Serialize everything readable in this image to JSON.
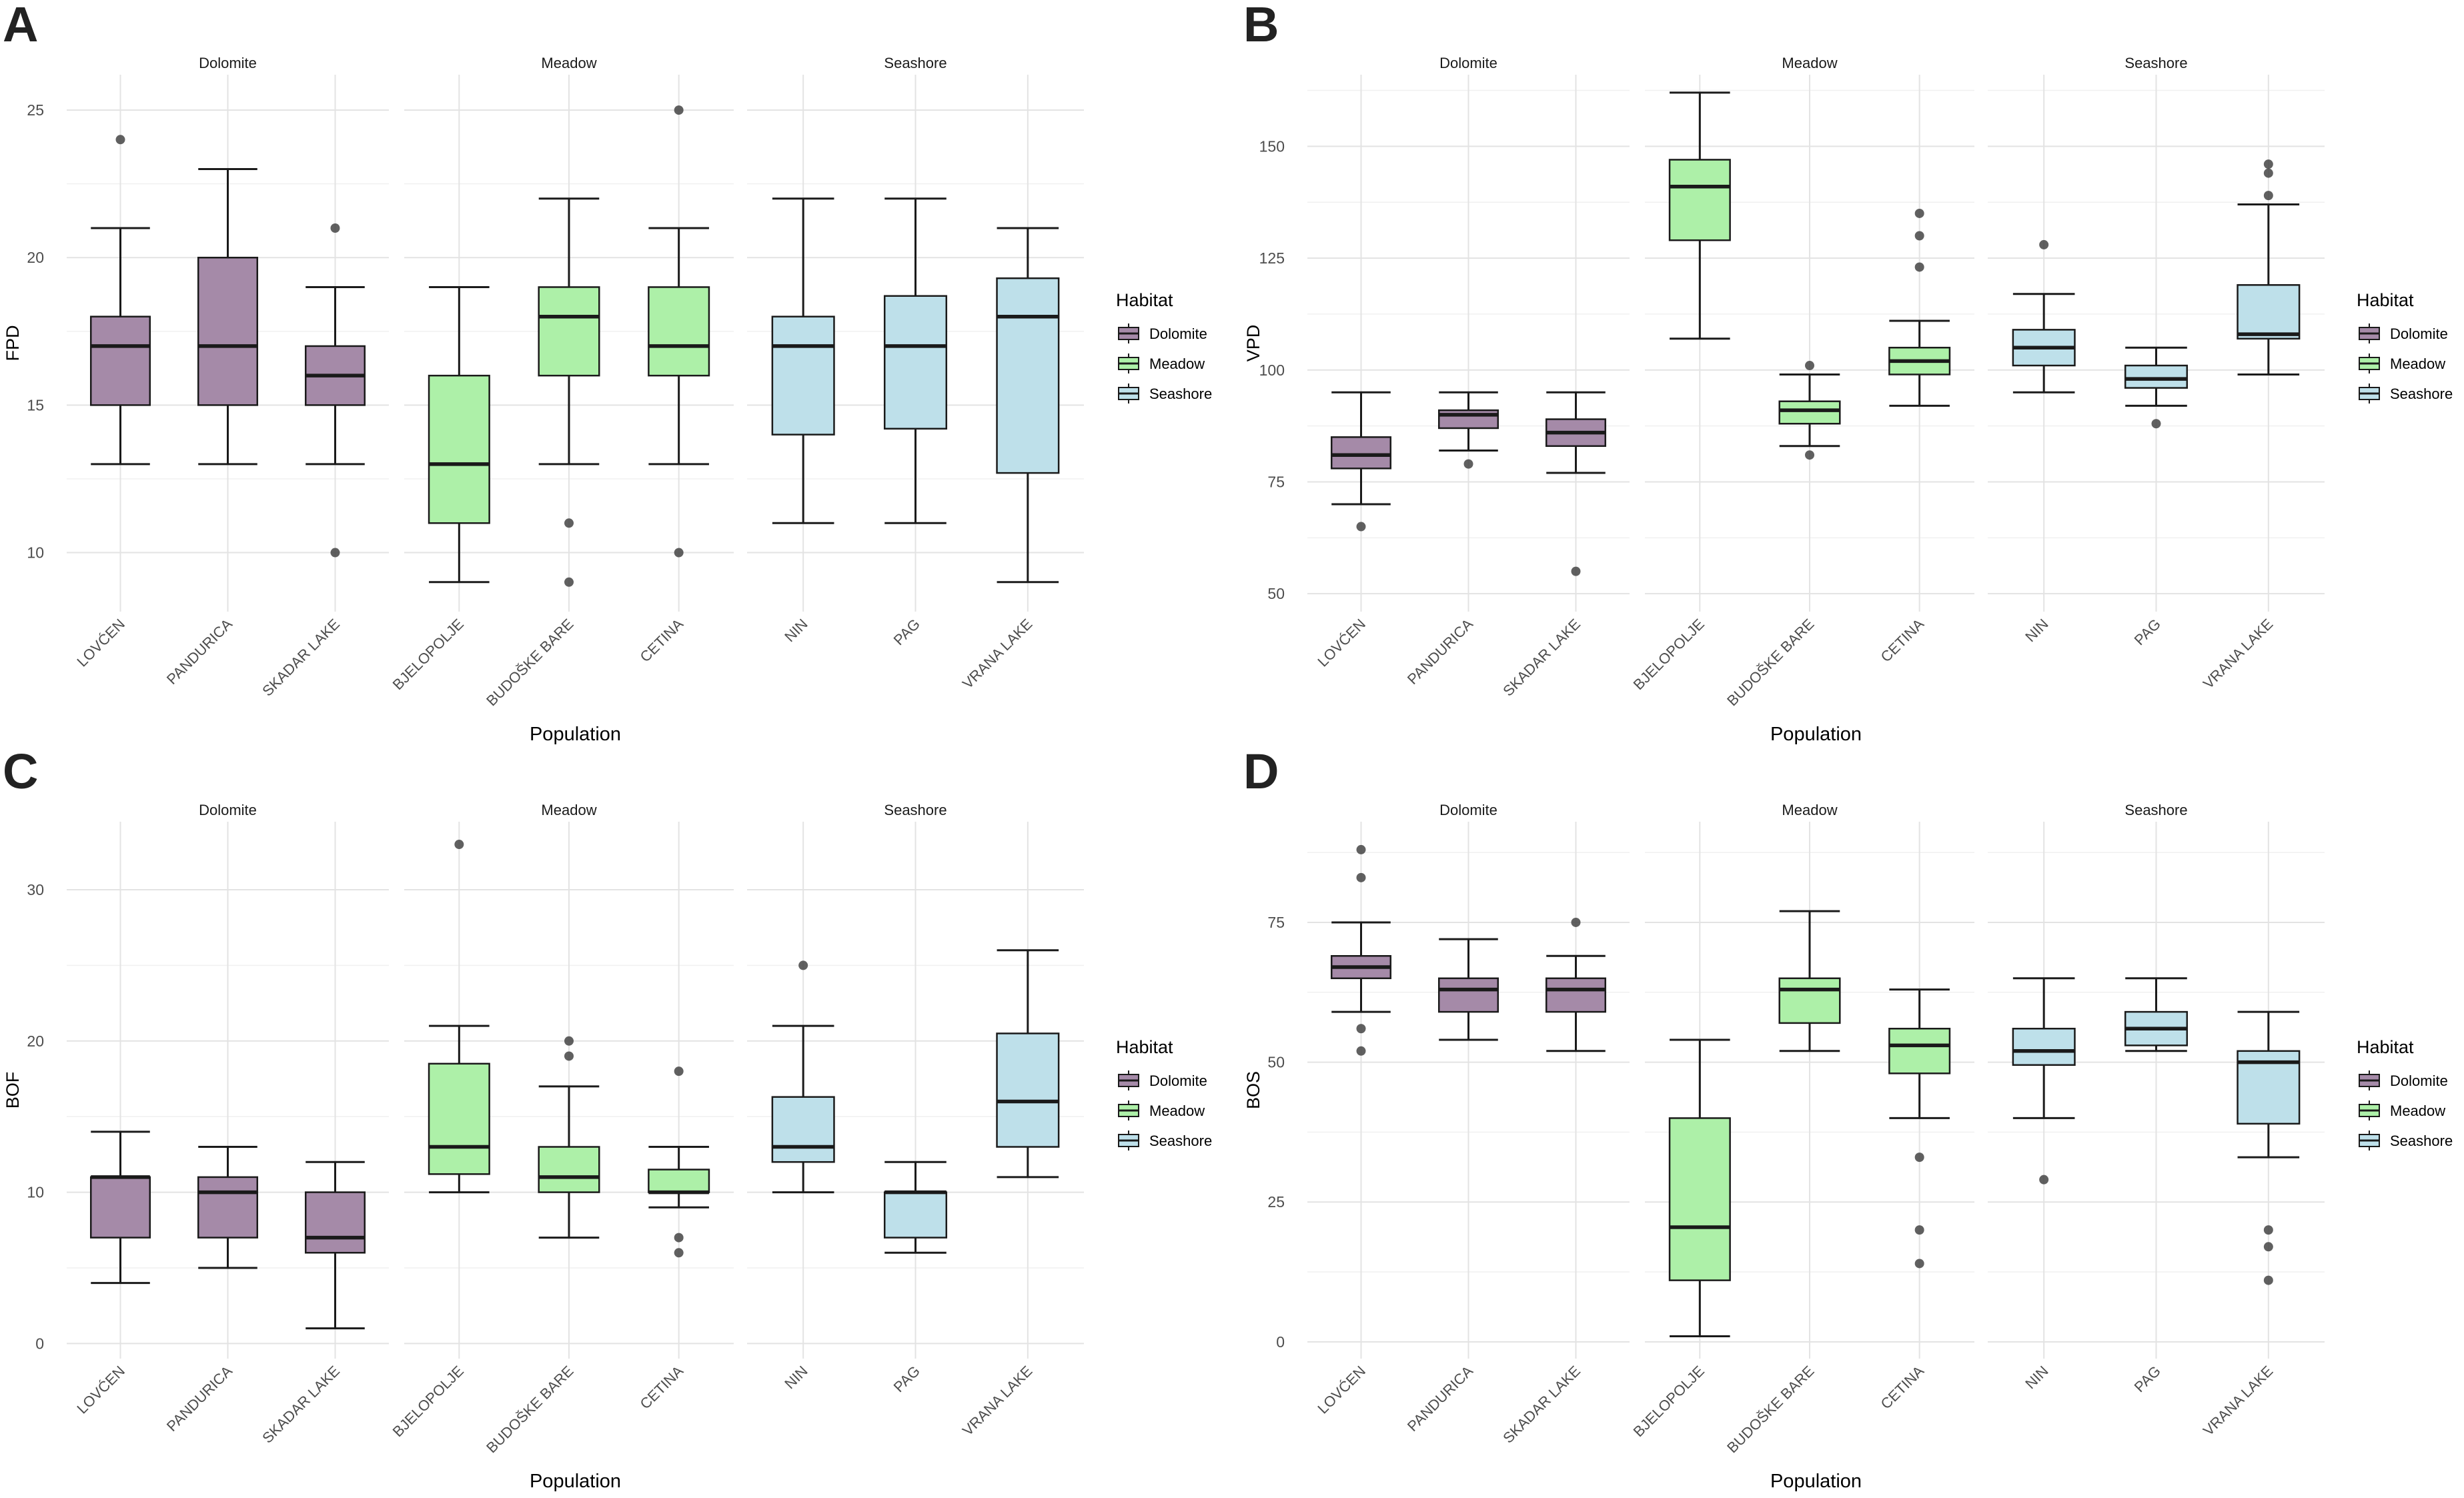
{
  "habitat_colors": {
    "Dolomite": "#A58AA8",
    "Meadow": "#ADF0A8",
    "Seashore": "#BEE0EA"
  },
  "chart_data": [
    {
      "type": "boxplot",
      "panel_label": "A",
      "title": "",
      "xlabel": "Population",
      "ylabel": "FPD",
      "ylim": [
        8,
        26.2
      ],
      "yticks": [
        10,
        15,
        20,
        25
      ],
      "facets": [
        "Dolomite",
        "Meadow",
        "Seashore"
      ],
      "legend": {
        "title": "Habitat",
        "entries": [
          "Dolomite",
          "Meadow",
          "Seashore"
        ]
      },
      "boxes": [
        {
          "facet": "Dolomite",
          "population": "LOVĆEN",
          "min": 13,
          "q1": 15,
          "median": 17,
          "q3": 18,
          "max": 21,
          "outliers": [
            24
          ]
        },
        {
          "facet": "Dolomite",
          "population": "PANDURICA",
          "min": 13,
          "q1": 15,
          "median": 17,
          "q3": 20,
          "max": 23,
          "outliers": []
        },
        {
          "facet": "Dolomite",
          "population": "SKADAR LAKE",
          "min": 13,
          "q1": 15,
          "median": 16,
          "q3": 17,
          "max": 19,
          "outliers": [
            21,
            10
          ]
        },
        {
          "facet": "Meadow",
          "population": "BJELOPOLJE",
          "min": 9,
          "q1": 11,
          "median": 13,
          "q3": 16,
          "max": 19,
          "outliers": []
        },
        {
          "facet": "Meadow",
          "population": "BUDOŠKE BARE",
          "min": 13,
          "q1": 16,
          "median": 18,
          "q3": 19,
          "max": 22,
          "outliers": [
            11,
            9
          ]
        },
        {
          "facet": "Meadow",
          "population": "CETINA",
          "min": 13,
          "q1": 16,
          "median": 17,
          "q3": 19,
          "max": 21,
          "outliers": [
            25,
            10
          ]
        },
        {
          "facet": "Seashore",
          "population": "NIN",
          "min": 11,
          "q1": 14,
          "median": 17,
          "q3": 18,
          "max": 22,
          "outliers": []
        },
        {
          "facet": "Seashore",
          "population": "PAG",
          "min": 11,
          "q1": 14.2,
          "median": 17,
          "q3": 18.7,
          "max": 22,
          "outliers": []
        },
        {
          "facet": "Seashore",
          "population": "VRANA LAKE",
          "min": 9,
          "q1": 12.7,
          "median": 18,
          "q3": 19.3,
          "max": 21,
          "outliers": []
        }
      ]
    },
    {
      "type": "boxplot",
      "panel_label": "B",
      "title": "",
      "xlabel": "Population",
      "ylabel": "VPD",
      "ylim": [
        46,
        166
      ],
      "yticks": [
        50,
        75,
        100,
        125,
        150
      ],
      "facets": [
        "Dolomite",
        "Meadow",
        "Seashore"
      ],
      "legend": {
        "title": "Habitat",
        "entries": [
          "Dolomite",
          "Meadow",
          "Seashore"
        ]
      },
      "boxes": [
        {
          "facet": "Dolomite",
          "population": "LOVĆEN",
          "min": 70,
          "q1": 78,
          "median": 81,
          "q3": 85,
          "max": 95,
          "outliers": [
            65
          ]
        },
        {
          "facet": "Dolomite",
          "population": "PANDURICA",
          "min": 82,
          "q1": 87,
          "median": 90,
          "q3": 91,
          "max": 95,
          "outliers": [
            79
          ]
        },
        {
          "facet": "Dolomite",
          "population": "SKADAR LAKE",
          "min": 77,
          "q1": 83,
          "median": 86,
          "q3": 89,
          "max": 95,
          "outliers": [
            55
          ]
        },
        {
          "facet": "Meadow",
          "population": "BJELOPOLJE",
          "min": 107,
          "q1": 129,
          "median": 141,
          "q3": 147,
          "max": 162,
          "outliers": []
        },
        {
          "facet": "Meadow",
          "population": "BUDOŠKE BARE",
          "min": 83,
          "q1": 88,
          "median": 91,
          "q3": 93,
          "max": 99,
          "outliers": [
            101,
            81
          ]
        },
        {
          "facet": "Meadow",
          "population": "CETINA",
          "min": 92,
          "q1": 99,
          "median": 102,
          "q3": 105,
          "max": 111,
          "outliers": [
            135,
            130,
            123
          ]
        },
        {
          "facet": "Seashore",
          "population": "NIN",
          "min": 95,
          "q1": 101,
          "median": 105,
          "q3": 109,
          "max": 117,
          "outliers": [
            128
          ]
        },
        {
          "facet": "Seashore",
          "population": "PAG",
          "min": 92,
          "q1": 96,
          "median": 98,
          "q3": 101,
          "max": 105,
          "outliers": [
            88
          ]
        },
        {
          "facet": "Seashore",
          "population": "VRANA LAKE",
          "min": 99,
          "q1": 107,
          "median": 108,
          "q3": 119,
          "max": 137,
          "outliers": [
            146,
            144,
            139
          ]
        }
      ]
    },
    {
      "type": "boxplot",
      "panel_label": "C",
      "title": "",
      "xlabel": "Population",
      "ylabel": "BOF",
      "ylim": [
        -1,
        34.5
      ],
      "yticks": [
        0,
        10,
        20,
        30
      ],
      "facets": [
        "Dolomite",
        "Meadow",
        "Seashore"
      ],
      "legend": {
        "title": "Habitat",
        "entries": [
          "Dolomite",
          "Meadow",
          "Seashore"
        ]
      },
      "boxes": [
        {
          "facet": "Dolomite",
          "population": "LOVĆEN",
          "min": 4,
          "q1": 7,
          "median": 11,
          "q3": 11,
          "max": 14,
          "outliers": []
        },
        {
          "facet": "Dolomite",
          "population": "PANDURICA",
          "min": 5,
          "q1": 7,
          "median": 10,
          "q3": 11,
          "max": 13,
          "outliers": []
        },
        {
          "facet": "Dolomite",
          "population": "SKADAR LAKE",
          "min": 1,
          "q1": 6,
          "median": 7,
          "q3": 10,
          "max": 12,
          "outliers": []
        },
        {
          "facet": "Meadow",
          "population": "BJELOPOLJE",
          "min": 10,
          "q1": 11.2,
          "median": 13,
          "q3": 18.5,
          "max": 21,
          "outliers": [
            33
          ]
        },
        {
          "facet": "Meadow",
          "population": "BUDOŠKE BARE",
          "min": 7,
          "q1": 10,
          "median": 11,
          "q3": 13,
          "max": 17,
          "outliers": [
            20,
            19
          ]
        },
        {
          "facet": "Meadow",
          "population": "CETINA",
          "min": 9,
          "q1": 10,
          "median": 10,
          "q3": 11.5,
          "max": 13,
          "outliers": [
            18,
            7,
            6
          ]
        },
        {
          "facet": "Seashore",
          "population": "NIN",
          "min": 10,
          "q1": 12,
          "median": 13,
          "q3": 16.3,
          "max": 21,
          "outliers": [
            25
          ]
        },
        {
          "facet": "Seashore",
          "population": "PAG",
          "min": 6,
          "q1": 7,
          "median": 10,
          "q3": 10,
          "max": 12,
          "outliers": []
        },
        {
          "facet": "Seashore",
          "population": "VRANA LAKE",
          "min": 11,
          "q1": 13,
          "median": 16,
          "q3": 20.5,
          "max": 26,
          "outliers": []
        }
      ]
    },
    {
      "type": "boxplot",
      "panel_label": "D",
      "title": "",
      "xlabel": "Population",
      "ylabel": "BOS",
      "ylim": [
        -3,
        93
      ],
      "yticks": [
        0,
        25,
        50,
        75
      ],
      "facets": [
        "Dolomite",
        "Meadow",
        "Seashore"
      ],
      "legend": {
        "title": "Habitat",
        "entries": [
          "Dolomite",
          "Meadow",
          "Seashore"
        ]
      },
      "boxes": [
        {
          "facet": "Dolomite",
          "population": "LOVĆEN",
          "min": 59,
          "q1": 65,
          "median": 67,
          "q3": 69,
          "max": 75,
          "outliers": [
            88,
            83,
            56,
            52
          ]
        },
        {
          "facet": "Dolomite",
          "population": "PANDURICA",
          "min": 54,
          "q1": 59,
          "median": 63,
          "q3": 65,
          "max": 72,
          "outliers": []
        },
        {
          "facet": "Dolomite",
          "population": "SKADAR LAKE",
          "min": 52,
          "q1": 59,
          "median": 63,
          "q3": 65,
          "max": 69,
          "outliers": [
            75
          ]
        },
        {
          "facet": "Meadow",
          "population": "BJELOPOLJE",
          "min": 1,
          "q1": 11,
          "median": 20.5,
          "q3": 40,
          "max": 54,
          "outliers": []
        },
        {
          "facet": "Meadow",
          "population": "BUDOŠKE BARE",
          "min": 52,
          "q1": 57,
          "median": 63,
          "q3": 65,
          "max": 77,
          "outliers": []
        },
        {
          "facet": "Meadow",
          "population": "CETINA",
          "min": 40,
          "q1": 48,
          "median": 53,
          "q3": 56,
          "max": 63,
          "outliers": [
            33,
            20,
            14
          ]
        },
        {
          "facet": "Seashore",
          "population": "NIN",
          "min": 40,
          "q1": 49.5,
          "median": 52,
          "q3": 56,
          "max": 65,
          "outliers": [
            29
          ]
        },
        {
          "facet": "Seashore",
          "population": "PAG",
          "min": 52,
          "q1": 53,
          "median": 56,
          "q3": 59,
          "max": 65,
          "outliers": []
        },
        {
          "facet": "Seashore",
          "population": "VRANA LAKE",
          "min": 33,
          "q1": 39,
          "median": 50,
          "q3": 52,
          "max": 59,
          "outliers": [
            20,
            17,
            11
          ]
        }
      ]
    }
  ]
}
